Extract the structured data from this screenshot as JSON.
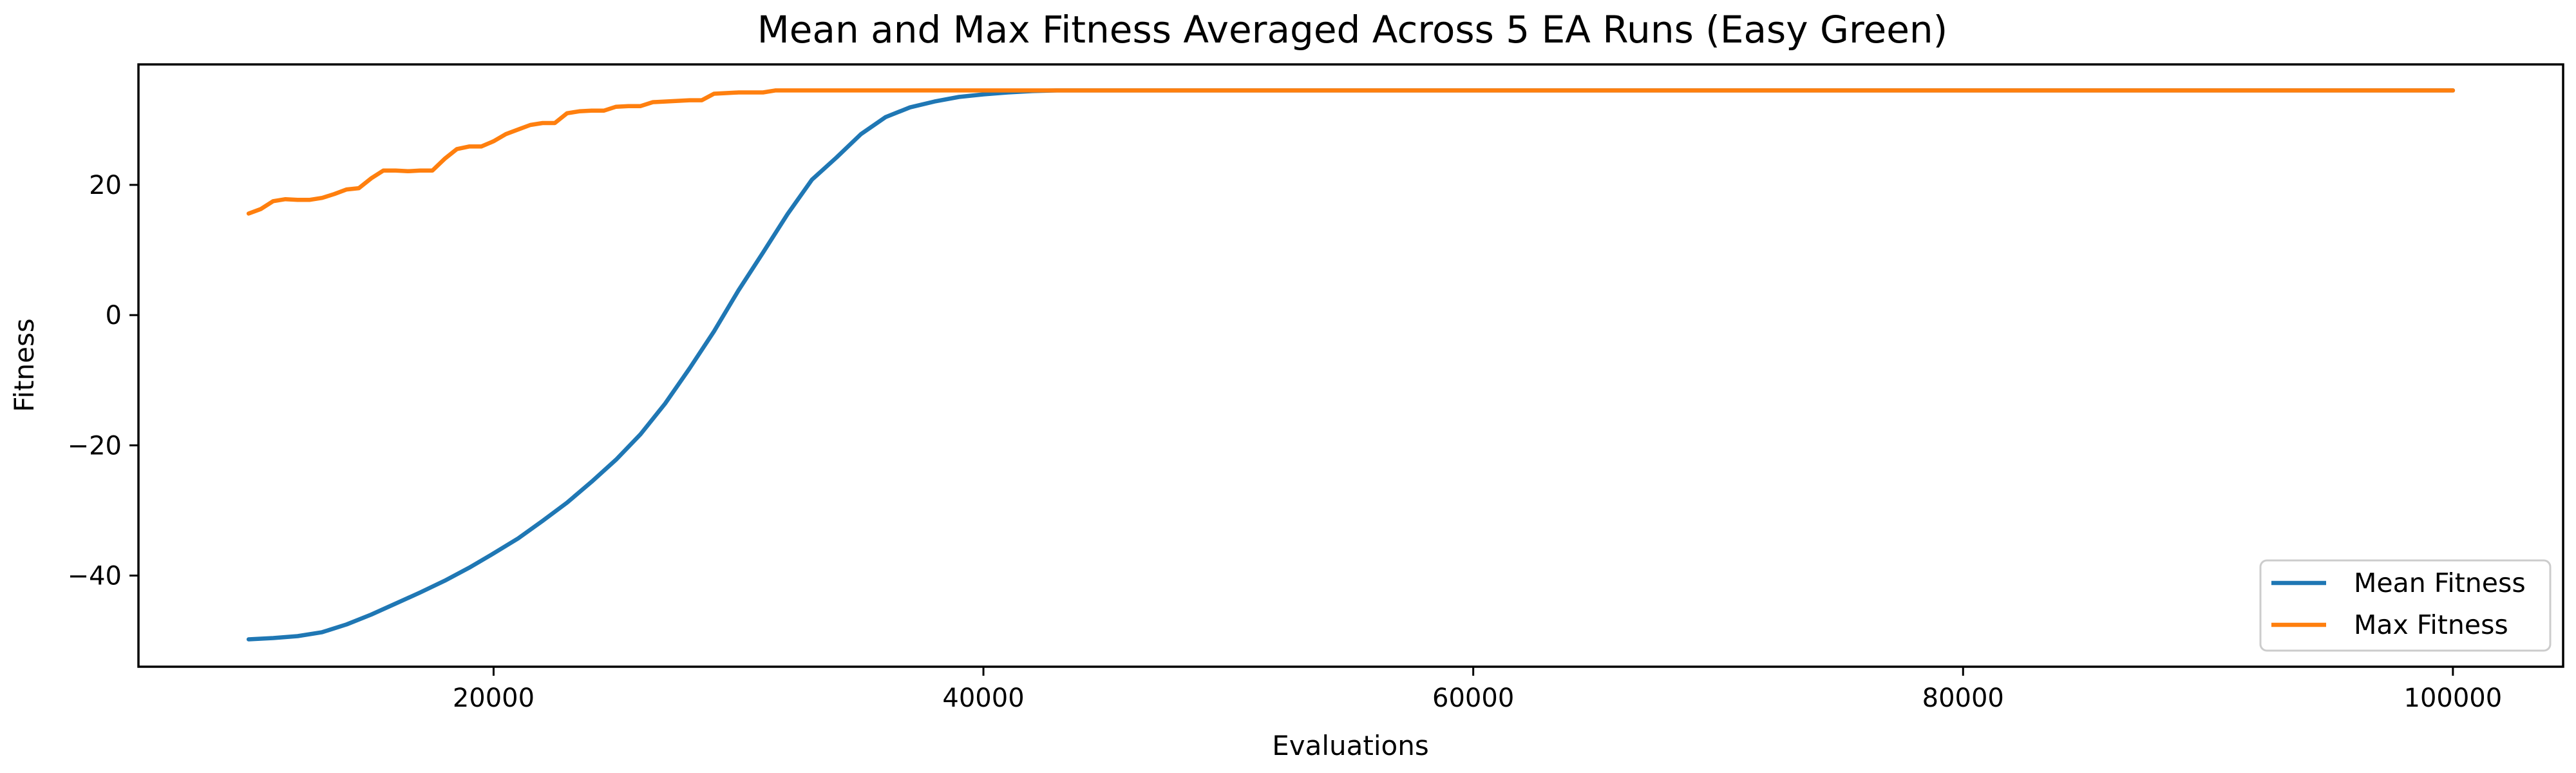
{
  "chart_data": {
    "type": "line",
    "title": "Mean and Max Fitness Averaged Across 5 EA Runs (Easy Green)",
    "xlabel": "Evaluations",
    "ylabel": "Fitness",
    "xlim": [
      5500,
      104500
    ],
    "ylim": [
      -54,
      38.5
    ],
    "xticks": [
      20000,
      40000,
      60000,
      80000,
      100000
    ],
    "yticks": [
      -40,
      -20,
      0,
      20
    ],
    "grid": false,
    "legend_position": "lower-right",
    "series": [
      {
        "name": "Mean Fitness",
        "color": "#1f77b4",
        "points": [
          [
            10000,
            -49.8
          ],
          [
            11000,
            -49.6
          ],
          [
            12000,
            -49.3
          ],
          [
            13000,
            -48.7
          ],
          [
            14000,
            -47.5
          ],
          [
            15000,
            -46.0
          ],
          [
            16000,
            -44.3
          ],
          [
            17000,
            -42.6
          ],
          [
            18000,
            -40.8
          ],
          [
            19000,
            -38.8
          ],
          [
            20000,
            -36.6
          ],
          [
            21000,
            -34.3
          ],
          [
            22000,
            -31.6
          ],
          [
            23000,
            -28.8
          ],
          [
            24000,
            -25.6
          ],
          [
            25000,
            -22.2
          ],
          [
            26000,
            -18.3
          ],
          [
            27000,
            -13.6
          ],
          [
            28000,
            -8.2
          ],
          [
            29000,
            -2.5
          ],
          [
            30000,
            3.8
          ],
          [
            31000,
            9.6
          ],
          [
            32000,
            15.5
          ],
          [
            33000,
            20.8
          ],
          [
            34000,
            24.2
          ],
          [
            35000,
            27.8
          ],
          [
            36000,
            30.4
          ],
          [
            37000,
            31.9
          ],
          [
            38000,
            32.8
          ],
          [
            39000,
            33.5
          ],
          [
            40000,
            33.9
          ],
          [
            41000,
            34.2
          ],
          [
            42000,
            34.4
          ],
          [
            43000,
            34.5
          ],
          [
            45000,
            34.5
          ],
          [
            50000,
            34.5
          ],
          [
            60000,
            34.5
          ],
          [
            70000,
            34.5
          ],
          [
            80000,
            34.5
          ],
          [
            90000,
            34.5
          ],
          [
            100000,
            34.5
          ]
        ]
      },
      {
        "name": "Max Fitness",
        "color": "#ff7f0e",
        "points": [
          [
            10000,
            15.6
          ],
          [
            10500,
            16.3
          ],
          [
            11000,
            17.5
          ],
          [
            11500,
            17.8
          ],
          [
            12000,
            17.7
          ],
          [
            12500,
            17.7
          ],
          [
            13000,
            18.0
          ],
          [
            13500,
            18.6
          ],
          [
            14000,
            19.3
          ],
          [
            14500,
            19.5
          ],
          [
            15000,
            21.0
          ],
          [
            15500,
            22.2
          ],
          [
            16000,
            22.2
          ],
          [
            16500,
            22.1
          ],
          [
            17000,
            22.2
          ],
          [
            17500,
            22.2
          ],
          [
            18000,
            24.0
          ],
          [
            18500,
            25.5
          ],
          [
            19000,
            25.9
          ],
          [
            19500,
            25.9
          ],
          [
            20000,
            26.7
          ],
          [
            20500,
            27.8
          ],
          [
            21000,
            28.5
          ],
          [
            21500,
            29.2
          ],
          [
            22000,
            29.5
          ],
          [
            22500,
            29.5
          ],
          [
            23000,
            31.0
          ],
          [
            23500,
            31.3
          ],
          [
            24000,
            31.4
          ],
          [
            24500,
            31.4
          ],
          [
            25000,
            32.0
          ],
          [
            25500,
            32.1
          ],
          [
            26000,
            32.1
          ],
          [
            26500,
            32.7
          ],
          [
            27000,
            32.8
          ],
          [
            27500,
            32.9
          ],
          [
            28000,
            33.0
          ],
          [
            28500,
            33.0
          ],
          [
            29000,
            34.0
          ],
          [
            29500,
            34.1
          ],
          [
            30000,
            34.2
          ],
          [
            30500,
            34.2
          ],
          [
            31000,
            34.2
          ],
          [
            31500,
            34.5
          ],
          [
            32000,
            34.5
          ],
          [
            35000,
            34.5
          ],
          [
            40000,
            34.5
          ],
          [
            50000,
            34.5
          ],
          [
            60000,
            34.5
          ],
          [
            70000,
            34.5
          ],
          [
            80000,
            34.5
          ],
          [
            90000,
            34.5
          ],
          [
            100000,
            34.5
          ]
        ]
      }
    ]
  }
}
